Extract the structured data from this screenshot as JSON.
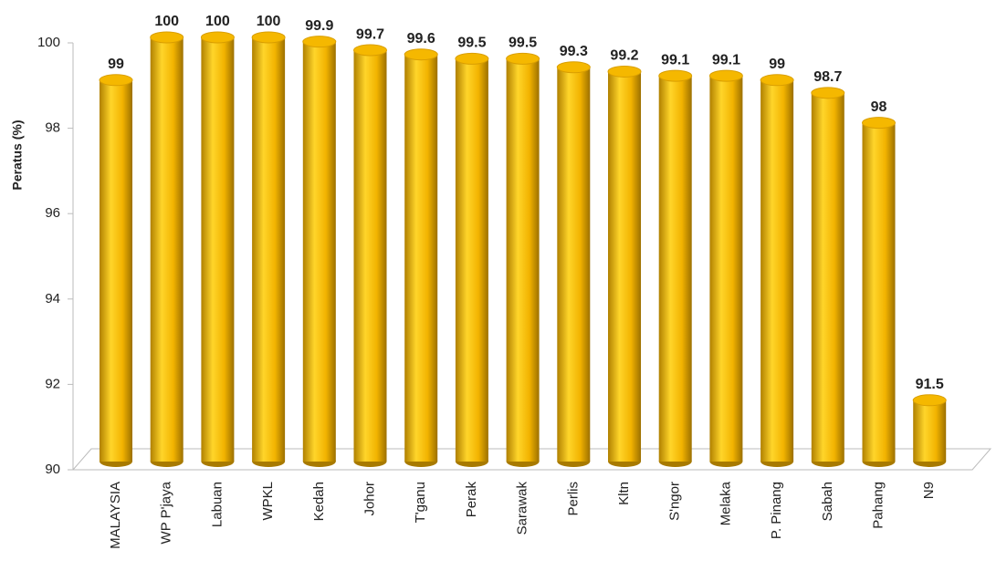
{
  "chart_data": {
    "type": "bar",
    "y_label": "Peratus (%)",
    "categories": [
      "MALAYSIA",
      "WP P'jaya",
      "Labuan",
      "WPKL",
      "Kedah",
      "Johor",
      "T'ganu",
      "Perak",
      "Sarawak",
      "Perlis",
      "Kltn",
      "S'ngor",
      "Melaka",
      "P. Pinang",
      "Sabah",
      "Pahang",
      "N9"
    ],
    "values": [
      99,
      100,
      100,
      100,
      99.9,
      99.7,
      99.6,
      99.5,
      99.5,
      99.3,
      99.2,
      99.1,
      99.1,
      99,
      98.7,
      98,
      91.5
    ],
    "color": "#f5b800",
    "ylim": [
      90,
      100
    ],
    "yticks": [
      90,
      92,
      94,
      96,
      98,
      100
    ]
  }
}
